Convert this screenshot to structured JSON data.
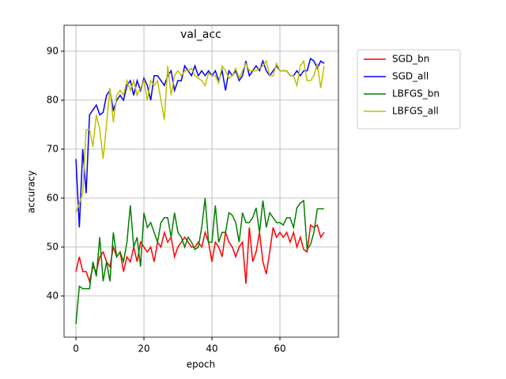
{
  "chart_data": {
    "type": "line",
    "title": "val_acc",
    "x_label": "epoch",
    "y_label": "accuracy",
    "x": [
      0,
      1,
      2,
      3,
      4,
      5,
      6,
      7,
      8,
      9,
      10,
      11,
      12,
      13,
      14,
      15,
      16,
      17,
      18,
      19,
      20,
      21,
      22,
      23,
      24,
      25,
      26,
      27,
      28,
      29,
      30,
      31,
      32,
      33,
      34,
      35,
      36,
      37,
      38,
      39,
      40,
      41,
      42,
      43,
      44,
      45,
      46,
      47,
      48,
      49,
      50,
      51,
      52,
      53,
      54,
      55,
      56,
      57,
      58,
      59,
      60,
      61,
      62,
      63,
      64,
      65,
      66,
      67,
      68,
      69,
      70,
      71,
      72,
      73
    ],
    "series": [
      {
        "name": "SGD_bn",
        "color": "#ff0000",
        "values": [
          45,
          48,
          45,
          45,
          43,
          46,
          45,
          48,
          49,
          47,
          46,
          50,
          48,
          49,
          45,
          48,
          47,
          50,
          47,
          51,
          50,
          49,
          50,
          47,
          51,
          50,
          53,
          51,
          52,
          48,
          50,
          51,
          52,
          51,
          50,
          50,
          51,
          50,
          53,
          51,
          47,
          51,
          50,
          48,
          53,
          51,
          50,
          48,
          50,
          51,
          42.5,
          54,
          47,
          49,
          53,
          47,
          44.5,
          49,
          54,
          52,
          53,
          52,
          53,
          51,
          53,
          50,
          52,
          49.5,
          49,
          54.5,
          54,
          54.5,
          52,
          53
        ]
      },
      {
        "name": "SGD_all",
        "color": "#0000ff",
        "values": [
          68,
          54,
          70,
          61,
          77,
          78,
          79,
          77,
          77.5,
          81,
          82,
          78,
          80,
          81,
          80,
          83,
          84,
          81,
          84,
          82,
          84.5,
          83,
          80,
          85,
          85,
          84,
          83,
          85,
          86,
          82,
          84,
          84,
          87,
          86,
          85,
          87,
          85,
          86,
          85,
          86,
          85,
          86,
          84,
          86,
          82,
          86,
          85,
          86,
          84,
          85,
          88,
          85,
          86,
          87,
          86,
          88,
          86,
          85,
          86,
          87,
          86,
          86,
          86,
          85,
          85,
          86,
          85,
          86,
          86,
          88.5,
          88,
          86.5,
          88,
          87.5
        ]
      },
      {
        "name": "LBFGS_bn",
        "color": "#008000",
        "values": [
          34.3,
          42,
          41.5,
          41.5,
          41.5,
          47,
          44,
          52,
          43,
          47,
          43,
          53,
          48,
          49,
          47,
          51,
          58.5,
          50,
          52,
          46,
          57,
          54,
          55,
          53,
          51,
          55,
          56,
          56,
          52,
          57,
          53,
          52,
          50,
          52,
          51,
          49.5,
          50,
          54,
          60,
          51,
          51,
          58.5,
          51,
          53,
          53,
          57,
          56.5,
          55,
          51,
          57,
          55,
          55,
          56,
          58,
          53,
          59.5,
          54,
          57,
          56,
          55,
          55,
          54.5,
          56,
          56,
          54,
          58,
          59,
          59.5,
          49.5,
          50.5,
          53,
          57.8,
          57.8,
          57.8
        ]
      },
      {
        "name": "LBFGS_all",
        "color": "#bfbf00",
        "values": [
          57,
          59,
          61,
          74,
          74,
          70.5,
          77,
          74,
          68,
          75,
          82.5,
          75.5,
          81,
          82,
          81,
          84,
          82,
          84,
          81,
          82.5,
          84,
          80,
          84,
          83,
          84,
          80,
          76,
          87,
          81,
          85,
          86,
          85,
          86,
          86,
          86.5,
          85,
          84.5,
          84,
          83,
          85.5,
          85,
          85,
          83.5,
          87,
          86,
          84.5,
          85,
          86.5,
          84.5,
          86,
          87.5,
          86,
          86,
          86,
          86.5,
          87,
          88,
          85,
          85,
          87.5,
          86,
          86,
          86,
          85,
          85,
          83,
          87,
          88,
          84,
          84,
          85,
          87.5,
          82.5,
          87
        ]
      }
    ],
    "xlim": [
      -3.5,
      77.2
    ],
    "ylim": [
      31.6,
      95.3
    ],
    "xticks": [
      0,
      20,
      40,
      60
    ],
    "yticks": [
      40,
      50,
      60,
      70,
      80,
      90
    ],
    "grid": true,
    "legend": "outside upper right"
  }
}
